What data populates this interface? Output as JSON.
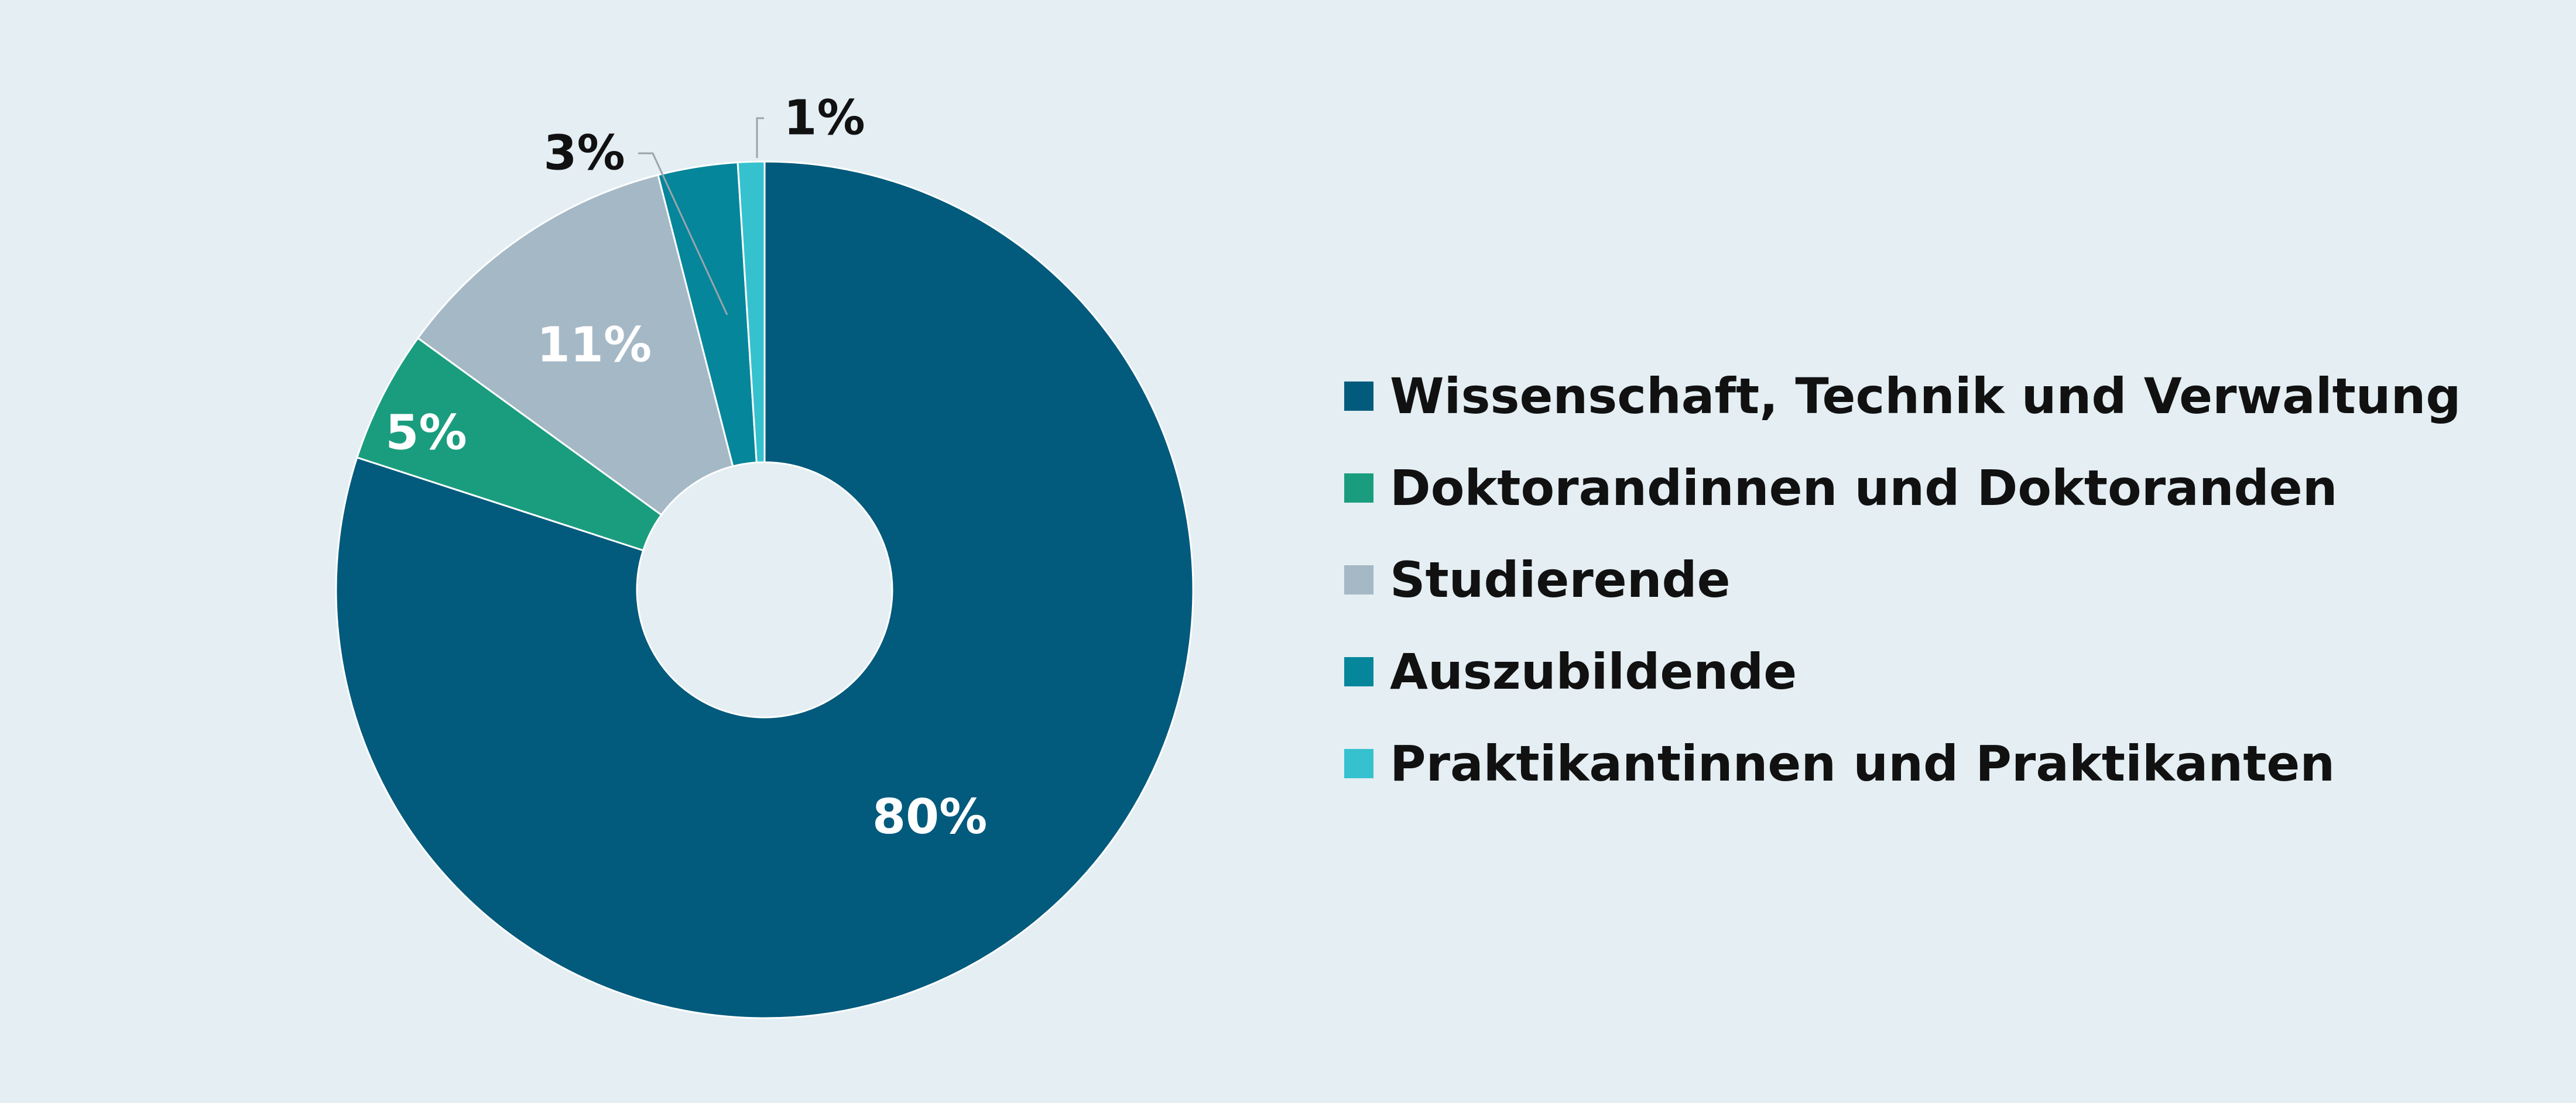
{
  "chart_data": {
    "type": "pie",
    "variant": "donut",
    "title": "",
    "categories": [
      "Wissenschaft, Technik und Verwaltung",
      "Doktorandinnen und Doktoranden",
      "Studierende",
      "Auszubildende",
      "Praktikantinnen und Praktikanten"
    ],
    "values": [
      80,
      5,
      11,
      3,
      1
    ],
    "value_labels": [
      "80%",
      "5%",
      "11%",
      "3%",
      "1%"
    ],
    "colors": [
      "#025a7c",
      "#1a9d7f",
      "#a5b8c5",
      "#05869b",
      "#36c1cf"
    ],
    "label_colors": [
      "#ffffff",
      "#ffffff",
      "#ffffff",
      "#111111",
      "#111111"
    ],
    "legend_position": "right",
    "start_angle_deg": 0,
    "direction": "clockwise"
  }
}
